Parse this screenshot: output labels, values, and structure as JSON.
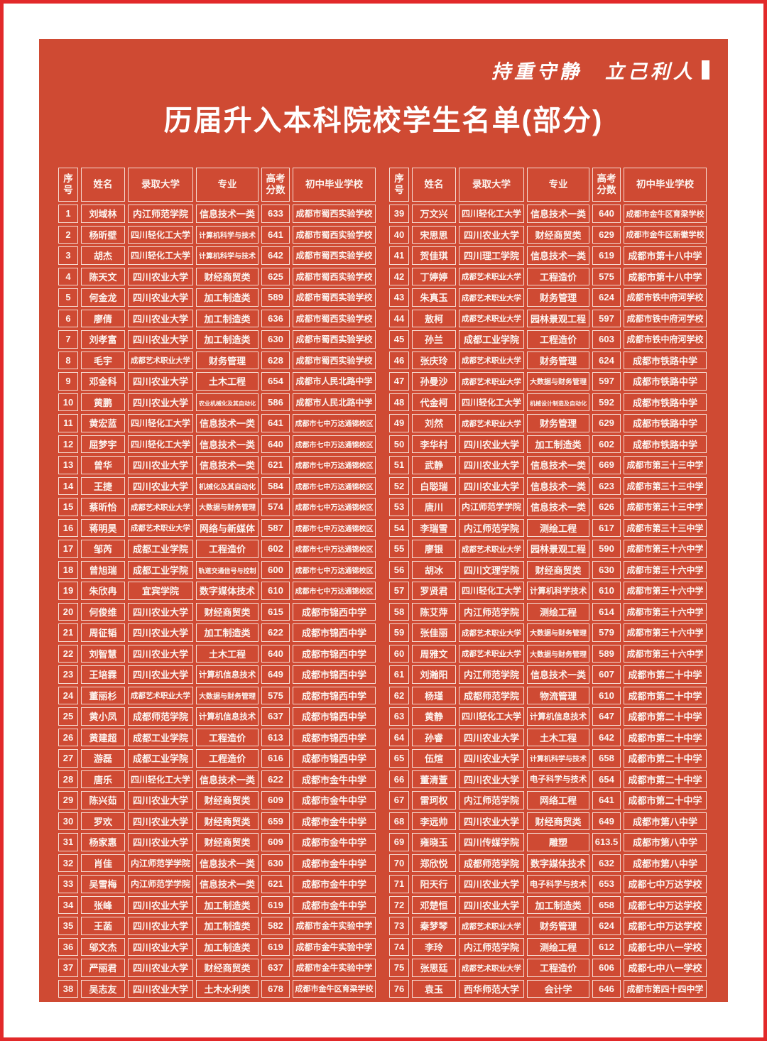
{
  "page": {
    "motto": "持重守静　立己利人",
    "title": "历届升入本科院校学生名单(部分)"
  },
  "colors": {
    "frame_red": "#e2292a",
    "panel_red": "#cf4a33",
    "cell_border": "#f6dcd2",
    "text_white": "#fdf4ef"
  },
  "table": {
    "headers": [
      "序号",
      "姓名",
      "录取大学",
      "专业",
      "高考分数",
      "初中毕业学校"
    ],
    "column_keys": [
      "seq",
      "name",
      "university",
      "major",
      "score",
      "school"
    ],
    "left_rows": [
      [
        1,
        "刘域林",
        "内江师范学院",
        "信息技术一类",
        633,
        "成都市蜀西实验学校"
      ],
      [
        2,
        "杨昕壁",
        "四川轻化工大学",
        "计算机科学与技术",
        641,
        "成都市蜀西实验学校"
      ],
      [
        3,
        "胡杰",
        "四川轻化工大学",
        "计算机科学与技术",
        642,
        "成都市蜀西实验学校"
      ],
      [
        4,
        "陈天文",
        "四川农业大学",
        "财经商贸类",
        625,
        "成都市蜀西实验学校"
      ],
      [
        5,
        "何金龙",
        "四川农业大学",
        "加工制造类",
        589,
        "成都市蜀西实验学校"
      ],
      [
        6,
        "廖倩",
        "四川农业大学",
        "加工制造类",
        636,
        "成都市蜀西实验学校"
      ],
      [
        7,
        "刘孝富",
        "四川农业大学",
        "加工制造类",
        630,
        "成都市蜀西实验学校"
      ],
      [
        8,
        "毛宇",
        "成都艺术职业大学",
        "财务管理",
        628,
        "成都市蜀西实验学校"
      ],
      [
        9,
        "邓金科",
        "四川农业大学",
        "土木工程",
        654,
        "成都市人民北路中学"
      ],
      [
        10,
        "黄鹏",
        "四川农业大学",
        "农业机械化及其自动化",
        586,
        "成都市人民北路中学"
      ],
      [
        11,
        "黄宏蓝",
        "四川轻化工大学",
        "信息技术一类",
        641,
        "成都市七中万达通锦校区"
      ],
      [
        12,
        "屈梦宇",
        "四川轻化工大学",
        "信息技术一类",
        640,
        "成都市七中万达通锦校区"
      ],
      [
        13,
        "曾华",
        "四川农业大学",
        "信息技术一类",
        621,
        "成都市七中万达通锦校区"
      ],
      [
        14,
        "王捷",
        "四川农业大学",
        "机械化及其自动化",
        584,
        "成都市七中万达通锦校区"
      ],
      [
        15,
        "蔡昕怡",
        "成都艺术职业大学",
        "大数据与财务管理",
        574,
        "成都市七中万达通锦校区"
      ],
      [
        16,
        "蒋明昊",
        "成都艺术职业大学",
        "网络与新媒体",
        587,
        "成都市七中万达通锦校区"
      ],
      [
        17,
        "邹芮",
        "成都工业学院",
        "工程造价",
        602,
        "成都市七中万达通锦校区"
      ],
      [
        18,
        "曾旭瑞",
        "成都工业学院",
        "轨道交通信号与控制",
        600,
        "成都市七中万达通锦校区"
      ],
      [
        19,
        "朱欣冉",
        "宜宾学院",
        "数字媒体技术",
        610,
        "成都市七中万达通锦校区"
      ],
      [
        20,
        "何俊维",
        "四川农业大学",
        "财经商贸类",
        615,
        "成都市锦西中学"
      ],
      [
        21,
        "周征韬",
        "四川农业大学",
        "加工制造类",
        622,
        "成都市锦西中学"
      ],
      [
        22,
        "刘智慧",
        "四川农业大学",
        "土木工程",
        640,
        "成都市锦西中学"
      ],
      [
        23,
        "王培霖",
        "四川农业大学",
        "计算机信息技术",
        649,
        "成都市锦西中学"
      ],
      [
        24,
        "董丽杉",
        "成都艺术职业大学",
        "大数据与财务管理",
        575,
        "成都市锦西中学"
      ],
      [
        25,
        "黄小凤",
        "成都师范学院",
        "计算机信息技术",
        637,
        "成都市锦西中学"
      ],
      [
        26,
        "黄建超",
        "成都工业学院",
        "工程造价",
        613,
        "成都市锦西中学"
      ],
      [
        27,
        "游磊",
        "成都工业学院",
        "工程造价",
        616,
        "成都市锦西中学"
      ],
      [
        28,
        "唐乐",
        "四川轻化工大学",
        "信息技术一类",
        622,
        "成都市金牛中学"
      ],
      [
        29,
        "陈兴茹",
        "四川农业大学",
        "财经商贸类",
        609,
        "成都市金牛中学"
      ],
      [
        30,
        "罗欢",
        "四川农业大学",
        "财经商贸类",
        659,
        "成都市金牛中学"
      ],
      [
        31,
        "杨家惠",
        "四川农业大学",
        "财经商贸类",
        609,
        "成都市金牛中学"
      ],
      [
        32,
        "肖佳",
        "内江师范学学院",
        "信息技术一类",
        630,
        "成都市金牛中学"
      ],
      [
        33,
        "吴雪梅",
        "内江师范学学院",
        "信息技术一类",
        621,
        "成都市金牛中学"
      ],
      [
        34,
        "张峰",
        "四川农业大学",
        "加工制造类",
        619,
        "成都市金牛中学"
      ],
      [
        35,
        "王菡",
        "四川农业大学",
        "加工制造类",
        582,
        "成都市金牛实验中学"
      ],
      [
        36,
        "邬文杰",
        "四川农业大学",
        "加工制造类",
        619,
        "成都市金牛实验中学"
      ],
      [
        37,
        "严丽君",
        "四川农业大学",
        "财经商贸类",
        637,
        "成都市金牛实验中学"
      ],
      [
        38,
        "吴志友",
        "四川农业大学",
        "土木水利类",
        678,
        "成都市金牛区育梁学校"
      ]
    ],
    "right_rows": [
      [
        39,
        "万文兴",
        "四川轻化工大学",
        "信息技术一类",
        640,
        "成都市金牛区育梁学校"
      ],
      [
        40,
        "宋思思",
        "四川农业大学",
        "财经商贸类",
        629,
        "成都市金牛区新徽学校"
      ],
      [
        41,
        "贺佳琪",
        "四川理工学院",
        "信息技术一类",
        619,
        "成都市第十八中学"
      ],
      [
        42,
        "丁婷婷",
        "成都艺术职业大学",
        "工程造价",
        575,
        "成都市第十八中学"
      ],
      [
        43,
        "朱真玉",
        "成都艺术职业大学",
        "财务管理",
        624,
        "成都市铁中府河学校"
      ],
      [
        44,
        "敖柯",
        "成都艺术职业大学",
        "园林景观工程",
        597,
        "成都市铁中府河学校"
      ],
      [
        45,
        "孙兰",
        "成都工业学院",
        "工程造价",
        603,
        "成都市铁中府河学校"
      ],
      [
        46,
        "张庆玲",
        "成都艺术职业大学",
        "财务管理",
        624,
        "成都市铁路中学"
      ],
      [
        47,
        "孙曼沙",
        "成都艺术职业大学",
        "大数据与财务管理",
        597,
        "成都市铁路中学"
      ],
      [
        48,
        "代金柯",
        "四川轻化工大学",
        "机械设计制造及自动化",
        592,
        "成都市铁路中学"
      ],
      [
        49,
        "刘然",
        "成都艺术职业大学",
        "财务管理",
        629,
        "成都市铁路中学"
      ],
      [
        50,
        "李华村",
        "四川农业大学",
        "加工制造类",
        602,
        "成都市铁路中学"
      ],
      [
        51,
        "武静",
        "四川农业大学",
        "信息技术一类",
        669,
        "成都市第三十三中学"
      ],
      [
        52,
        "白聪瑞",
        "四川农业大学",
        "信息技术一类",
        623,
        "成都市第三十三中学"
      ],
      [
        53,
        "唐川",
        "内江师范学学院",
        "信息技术一类",
        626,
        "成都市第三十三中学"
      ],
      [
        54,
        "李瑞雪",
        "内江师范学院",
        "测绘工程",
        617,
        "成都市第三十三中学"
      ],
      [
        55,
        "廖银",
        "成都艺术职业大学",
        "园林景观工程",
        590,
        "成都市第三十六中学"
      ],
      [
        56,
        "胡冰",
        "四川文理学院",
        "财经商贸类",
        630,
        "成都市第三十六中学"
      ],
      [
        57,
        "罗贤君",
        "四川轻化工大学",
        "计算机科学技术",
        610,
        "成都市第三十六中学"
      ],
      [
        58,
        "陈艾萍",
        "内江师范学院",
        "测绘工程",
        614,
        "成都市第三十六中学"
      ],
      [
        59,
        "张佳丽",
        "成都艺术职业大学",
        "大数据与财务管理",
        579,
        "成都市第三十六中学"
      ],
      [
        60,
        "周雅文",
        "成都艺术职业大学",
        "大数据与财务管理",
        589,
        "成都市第三十六中学"
      ],
      [
        61,
        "刘瀚阳",
        "内江师范学院",
        "信息技术一类",
        607,
        "成都市第二十中学"
      ],
      [
        62,
        "杨瑾",
        "成都师范学院",
        "物流管理",
        610,
        "成都市第二十中学"
      ],
      [
        63,
        "黄静",
        "四川轻化工大学",
        "计算机信息技术",
        647,
        "成都市第二十中学"
      ],
      [
        64,
        "孙睿",
        "四川农业大学",
        "土木工程",
        642,
        "成都市第二十中学"
      ],
      [
        65,
        "伍煊",
        "四川农业大学",
        "计算机科学与技术",
        658,
        "成都市第二十中学"
      ],
      [
        66,
        "董清萱",
        "四川农业大学",
        "电子科学与技术",
        654,
        "成都市第二十中学"
      ],
      [
        67,
        "雷珂权",
        "内江师范学院",
        "网络工程",
        641,
        "成都市第二十中学"
      ],
      [
        68,
        "李远帅",
        "四川农业大学",
        "财经商贸类",
        649,
        "成都市第八中学"
      ],
      [
        69,
        "雍晓玉",
        "四川传媒学院",
        "雕塑",
        613.5,
        "成都市第八中学"
      ],
      [
        70,
        "郑欣悦",
        "成都师范学院",
        "数字媒体技术",
        632,
        "成都市第八中学"
      ],
      [
        71,
        "阳天行",
        "四川农业大学",
        "电子科学与技术",
        653,
        "成都七中万达学校"
      ],
      [
        72,
        "邓楚恒",
        "四川农业大学",
        "加工制造类",
        658,
        "成都七中万达学校"
      ],
      [
        73,
        "秦梦琴",
        "成都艺术职业大学",
        "财务管理",
        624,
        "成都七中万达学校"
      ],
      [
        74,
        "李玲",
        "内江师范学院",
        "测绘工程",
        612,
        "成都七中八一学校"
      ],
      [
        75,
        "张思廷",
        "成都艺术职业大学",
        "工程造价",
        606,
        "成都七中八一学校"
      ],
      [
        76,
        "袁玉",
        "西华师范大学",
        "会计学",
        646,
        "成都市第四十四中学"
      ]
    ]
  }
}
